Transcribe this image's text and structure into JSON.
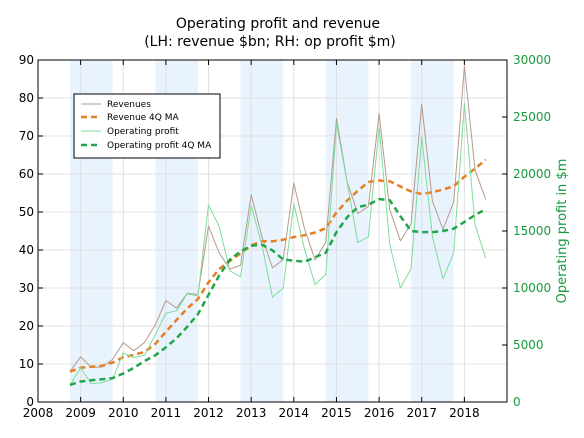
{
  "chart_data": {
    "type": "line",
    "title_line1": "Operating profit and revenue",
    "title_line2": "(LH: revenue $bn; RH: op profit $m)",
    "ylabel_right": "Operating profit in $m",
    "xlim": [
      2008,
      2019
    ],
    "ylim_left": [
      0,
      90
    ],
    "ylim_right": [
      0,
      30000
    ],
    "x_ticks": [
      "2008",
      "2009",
      "2010",
      "2011",
      "2012",
      "2013",
      "2014",
      "2015",
      "2016",
      "2017",
      "2018"
    ],
    "y_ticks_left": [
      "0",
      "10",
      "20",
      "30",
      "40",
      "50",
      "60",
      "70",
      "80",
      "90"
    ],
    "y_ticks_right": [
      "0",
      "5000",
      "10000",
      "15000",
      "20000",
      "25000",
      "30000"
    ],
    "grid": true,
    "legend_position": "upper-left",
    "shaded_periods": [
      [
        2008.75,
        2009.75
      ],
      [
        2010.75,
        2011.75
      ],
      [
        2012.75,
        2013.75
      ],
      [
        2014.75,
        2015.75
      ],
      [
        2016.75,
        2017.75
      ]
    ],
    "colors": {
      "revenue": "#b59a8a",
      "revenue_ma": "#e67e22",
      "op_profit": "#7fdc9a",
      "op_profit_ma": "#1fa84a",
      "right_axis": "#1a9a3c",
      "shade": "#e8f3fe"
    },
    "series": [
      {
        "name": "Revenues",
        "axis": "left",
        "style": "solid",
        "x": [
          2008.75,
          2009.0,
          2009.25,
          2009.5,
          2009.75,
          2010.0,
          2010.25,
          2010.5,
          2010.75,
          2011.0,
          2011.25,
          2011.5,
          2011.75,
          2012.0,
          2012.25,
          2012.5,
          2012.75,
          2013.0,
          2013.25,
          2013.5,
          2013.75,
          2014.0,
          2014.25,
          2014.5,
          2014.75,
          2015.0,
          2015.25,
          2015.5,
          2015.75,
          2016.0,
          2016.25,
          2016.5,
          2016.75,
          2017.0,
          2017.25,
          2017.5,
          2017.75,
          2018.0,
          2018.25,
          2018.5
        ],
        "values": [
          8.0,
          11.9,
          9.1,
          9.2,
          11.2,
          15.6,
          13.5,
          15.7,
          20.3,
          26.7,
          24.7,
          28.6,
          28.3,
          46.3,
          39.2,
          35.0,
          36.0,
          54.5,
          43.6,
          35.3,
          37.5,
          57.6,
          45.6,
          37.4,
          42.1,
          74.6,
          58.0,
          49.6,
          51.5,
          75.9,
          50.6,
          42.4,
          46.9,
          78.4,
          52.9,
          45.4,
          52.6,
          88.3,
          61.1,
          53.3
        ]
      },
      {
        "name": "Revenue 4Q MA",
        "axis": "left",
        "style": "dashed",
        "x": [
          2008.75,
          2009.0,
          2009.25,
          2009.5,
          2009.75,
          2010.0,
          2010.25,
          2010.5,
          2010.75,
          2011.0,
          2011.25,
          2011.5,
          2011.75,
          2012.0,
          2012.25,
          2012.5,
          2012.75,
          2013.0,
          2013.25,
          2013.5,
          2013.75,
          2014.0,
          2014.25,
          2014.5,
          2014.75,
          2015.0,
          2015.25,
          2015.5,
          2015.75,
          2016.0,
          2016.25,
          2016.5,
          2016.75,
          2017.0,
          2017.25,
          2017.5,
          2017.75,
          2018.0,
          2018.25,
          2018.5
        ],
        "values": [
          8.0,
          9.0,
          9.3,
          9.5,
          10.4,
          11.8,
          12.4,
          13.2,
          15.3,
          18.5,
          21.6,
          24.6,
          27.1,
          31.5,
          35.0,
          37.1,
          39.1,
          41.2,
          42.3,
          42.3,
          42.7,
          43.4,
          43.9,
          44.6,
          45.7,
          49.9,
          53.0,
          55.6,
          57.9,
          58.3,
          58.1,
          56.7,
          55.4,
          54.7,
          55.2,
          55.9,
          56.8,
          59.3,
          61.4,
          63.8
        ]
      },
      {
        "name": "Operating profit",
        "axis": "right",
        "style": "solid",
        "x": [
          2008.75,
          2009.0,
          2009.25,
          2009.5,
          2009.75,
          2010.0,
          2010.25,
          2010.5,
          2010.75,
          2011.0,
          2011.25,
          2011.5,
          2011.75,
          2012.0,
          2012.25,
          2012.5,
          2012.75,
          2013.0,
          2013.25,
          2013.5,
          2013.75,
          2014.0,
          2014.25,
          2014.5,
          2014.75,
          2015.0,
          2015.25,
          2015.5,
          2015.75,
          2016.0,
          2016.25,
          2016.5,
          2016.75,
          2017.0,
          2017.25,
          2017.5,
          2017.75,
          2018.0,
          2018.25,
          2018.5
        ],
        "values": [
          1500,
          3000,
          1600,
          1700,
          2000,
          4300,
          3900,
          4100,
          5900,
          7800,
          8000,
          9500,
          9300,
          17300,
          15400,
          11500,
          11000,
          17200,
          13800,
          9200,
          10000,
          17400,
          13400,
          10300,
          11200,
          24400,
          19300,
          14000,
          14500,
          24100,
          13800,
          10000,
          11700,
          23300,
          14500,
          10800,
          13100,
          26200,
          15600,
          12600
        ]
      },
      {
        "name": "Operating profit 4Q MA",
        "axis": "right",
        "style": "dashed",
        "x": [
          2008.75,
          2009.0,
          2009.25,
          2009.5,
          2009.75,
          2010.0,
          2010.25,
          2010.5,
          2010.75,
          2011.0,
          2011.25,
          2011.5,
          2011.75,
          2012.0,
          2012.25,
          2012.5,
          2012.75,
          2013.0,
          2013.25,
          2013.5,
          2013.75,
          2014.0,
          2014.25,
          2014.5,
          2014.75,
          2015.0,
          2015.25,
          2015.5,
          2015.75,
          2016.0,
          2016.25,
          2016.5,
          2016.75,
          2017.0,
          2017.25,
          2017.5,
          2017.75,
          2018.0,
          2018.25,
          2018.5
        ],
        "values": [
          1500,
          1800,
          1900,
          2000,
          2100,
          2500,
          3000,
          3600,
          4100,
          4800,
          5600,
          6600,
          7700,
          9400,
          11100,
          12500,
          13200,
          13700,
          13800,
          13300,
          12500,
          12400,
          12300,
          12700,
          13100,
          14900,
          16200,
          17100,
          17300,
          17800,
          17700,
          16300,
          15000,
          14900,
          14900,
          15000,
          15200,
          15800,
          16400,
          16900
        ]
      }
    ]
  }
}
